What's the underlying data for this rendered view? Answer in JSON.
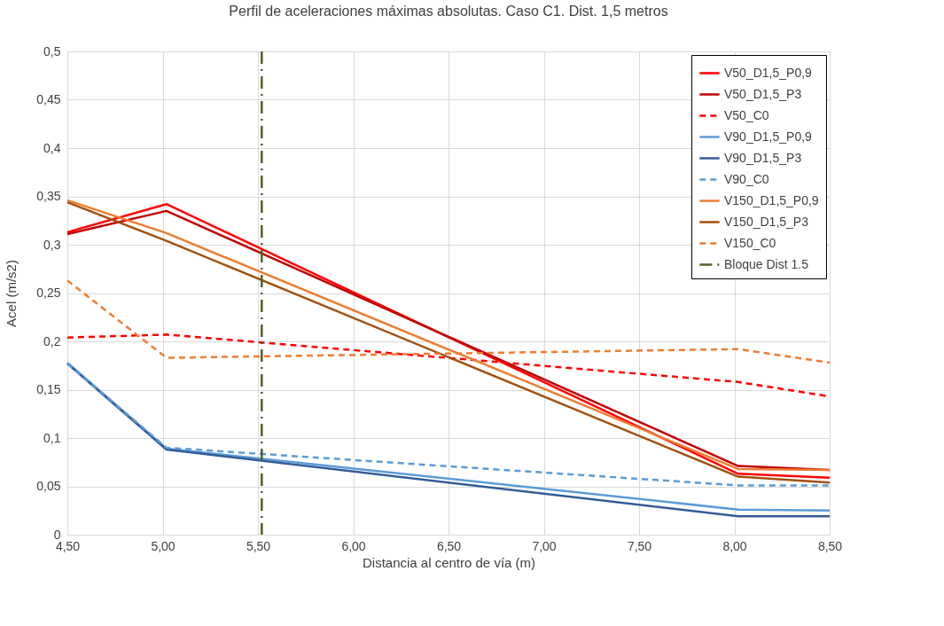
{
  "chart_data": {
    "type": "line",
    "title": "Perfil de aceleraciones máximas absolutas. Caso C1. Dist. 1,5 metros",
    "xlabel": "Distancia al centro de vía  (m)",
    "ylabel": "Acel (m/s2)",
    "x": [
      4.5,
      5.02,
      8.02,
      8.5
    ],
    "series": [
      {
        "name": "V50_D1,5_P0,9",
        "color": "#ff0000",
        "line_style": "solid",
        "values": [
          0.313,
          0.342,
          0.063,
          0.059
        ]
      },
      {
        "name": "V50_D1,5_P3",
        "color": "#c00000",
        "line_style": "solid",
        "values": [
          0.311,
          0.335,
          0.071,
          0.067
        ]
      },
      {
        "name": "V50_C0",
        "color": "#ff0000",
        "line_style": "dashed",
        "values": [
          0.204,
          0.207,
          0.158,
          0.143
        ]
      },
      {
        "name": "V90_D1,5_P0,9",
        "color": "#5b9bd5",
        "line_style": "solid",
        "values": [
          0.178,
          0.089,
          0.026,
          0.025
        ]
      },
      {
        "name": "V90_D1,5_P3",
        "color": "#335c96",
        "line_style": "solid",
        "values": [
          0.177,
          0.088,
          0.019,
          0.019
        ]
      },
      {
        "name": "V90_C0",
        "color": "#5b9bd5",
        "line_style": "dashed",
        "values": [
          0.177,
          0.09,
          0.051,
          0.051
        ]
      },
      {
        "name": "V150_D1,5_P0,9",
        "color": "#ed7d31",
        "line_style": "solid",
        "values": [
          0.346,
          0.312,
          0.068,
          0.067
        ]
      },
      {
        "name": "V150_D1,5_P3",
        "color": "#a0500f",
        "line_style": "solid",
        "values": [
          0.344,
          0.304,
          0.06,
          0.054
        ]
      },
      {
        "name": "V150_C0",
        "color": "#ed7d31",
        "line_style": "dashed",
        "values": [
          0.263,
          0.183,
          0.192,
          0.178
        ]
      }
    ],
    "ref_lines": [
      {
        "axis": "x",
        "value": 5.52,
        "label": "Bloque Dist 1.5",
        "color": "#4f6228",
        "line_style": "dashdot"
      }
    ],
    "xlim": [
      4.5,
      8.5
    ],
    "xticks": [
      {
        "value": 4.5,
        "label": "4,50"
      },
      {
        "value": 5,
        "label": "5,00"
      },
      {
        "value": 5.5,
        "label": "5,50"
      },
      {
        "value": 6,
        "label": "6,00"
      },
      {
        "value": 6.5,
        "label": "6,50"
      },
      {
        "value": 7,
        "label": "7,00"
      },
      {
        "value": 7.5,
        "label": "7,50"
      },
      {
        "value": 8,
        "label": "8,00"
      },
      {
        "value": 8.5,
        "label": "8,50"
      }
    ],
    "ylim": [
      0,
      0.5
    ],
    "yticks": [
      0,
      {
        "value": 0.05,
        "label": "0,05"
      },
      {
        "value": 0.1,
        "label": "0,1"
      },
      {
        "value": 0.15,
        "label": "0,15"
      },
      {
        "value": 0.2,
        "label": "0,2"
      },
      {
        "value": 0.25,
        "label": "0,25"
      },
      {
        "value": 0.3,
        "label": "0,3"
      },
      {
        "value": 0.35,
        "label": "0,35"
      },
      {
        "value": 0.4,
        "label": "0,4"
      },
      {
        "value": 0.45,
        "label": "0,45"
      },
      {
        "value": 0.5,
        "label": "0,5"
      }
    ],
    "grid": true,
    "legend": "top right",
    "marker": "none"
  }
}
